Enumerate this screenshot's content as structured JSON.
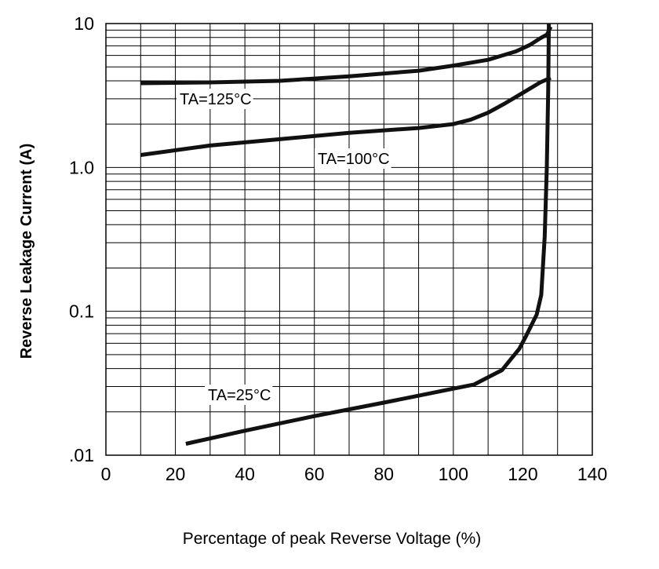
{
  "chart_data": {
    "type": "line",
    "title": "",
    "xlabel": "Percentage of peak Reverse Voltage (%)",
    "ylabel": "Reverse Leakage Current (A)",
    "xlim": [
      0,
      140
    ],
    "ylim": [
      0.01,
      10
    ],
    "yscale": "log",
    "grid": true,
    "x_ticks": [
      0,
      20,
      40,
      60,
      80,
      100,
      120,
      140
    ],
    "x_tick_labels": [
      "0",
      "20",
      "40",
      "60",
      "80",
      "100",
      "120",
      "140"
    ],
    "y_ticks": [
      10,
      1,
      0.1,
      0.01
    ],
    "y_tick_labels": [
      "10",
      "1.0",
      "0.1",
      ".01"
    ],
    "series": [
      {
        "name": "TA=125°C",
        "points": [
          [
            10,
            3.85
          ],
          [
            30,
            3.9
          ],
          [
            50,
            4.0
          ],
          [
            70,
            4.3
          ],
          [
            90,
            4.7
          ],
          [
            100,
            5.1
          ],
          [
            110,
            5.6
          ],
          [
            118,
            6.4
          ],
          [
            122,
            7.1
          ],
          [
            125,
            7.9
          ],
          [
            127,
            8.4
          ],
          [
            128,
            9.5
          ]
        ]
      },
      {
        "name": "TA=100°C",
        "points": [
          [
            10,
            1.22
          ],
          [
            30,
            1.42
          ],
          [
            50,
            1.57
          ],
          [
            70,
            1.74
          ],
          [
            90,
            1.88
          ],
          [
            100,
            2.0
          ],
          [
            105,
            2.15
          ],
          [
            110,
            2.4
          ],
          [
            115,
            2.8
          ],
          [
            120,
            3.3
          ],
          [
            125,
            3.9
          ],
          [
            128,
            4.2
          ]
        ]
      },
      {
        "name": "TA=25°C",
        "points": [
          [
            23,
            0.012
          ],
          [
            40,
            0.0148
          ],
          [
            60,
            0.0187
          ],
          [
            80,
            0.0232
          ],
          [
            100,
            0.029
          ],
          [
            106,
            0.031
          ],
          [
            114,
            0.039
          ],
          [
            119,
            0.055
          ],
          [
            121,
            0.068
          ],
          [
            124,
            0.095
          ],
          [
            125.3,
            0.13
          ],
          [
            126.3,
            0.33
          ],
          [
            126.9,
            1.0
          ],
          [
            127.3,
            3.5
          ],
          [
            127.5,
            10
          ]
        ]
      }
    ]
  }
}
